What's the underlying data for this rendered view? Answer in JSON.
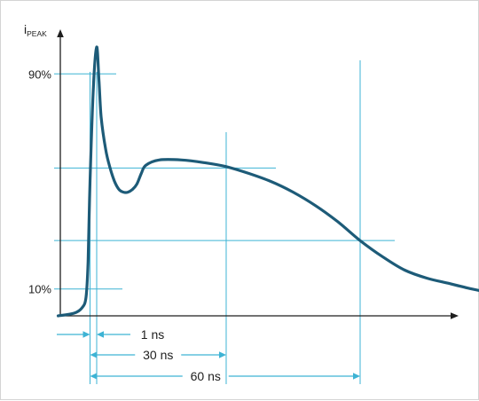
{
  "chart_data": {
    "type": "line",
    "y_axis_label": {
      "main": "i",
      "sub": "PEAK"
    },
    "y_ticks": [
      {
        "label": "90%",
        "value": 0.9
      },
      {
        "label": "10%",
        "value": 0.1
      }
    ],
    "reference_levels": [
      0.9,
      0.1,
      0.55,
      0.28
    ],
    "time_markers": [
      {
        "label": "1 ns",
        "t_ns": 1
      },
      {
        "label": "30 ns",
        "t_ns": 30
      },
      {
        "label": "60 ns",
        "t_ns": 60
      }
    ],
    "series": [
      {
        "points": [
          [
            -8.0,
            0.0
          ],
          [
            -4.0,
            0.01
          ],
          [
            -2.0,
            0.03
          ],
          [
            -1.0,
            0.07
          ],
          [
            -0.5,
            0.2
          ],
          [
            0.0,
            0.5
          ],
          [
            0.5,
            0.85
          ],
          [
            1.0,
            1.0
          ],
          [
            1.5,
            0.88
          ],
          [
            2.0,
            0.74
          ],
          [
            3.0,
            0.62
          ],
          [
            4.0,
            0.55
          ],
          [
            5.0,
            0.5
          ],
          [
            6.0,
            0.47
          ],
          [
            7.0,
            0.46
          ],
          [
            8.0,
            0.46
          ],
          [
            9.0,
            0.47
          ],
          [
            10.0,
            0.49
          ],
          [
            11.0,
            0.53
          ],
          [
            12.0,
            0.56
          ],
          [
            15.0,
            0.58
          ],
          [
            20.0,
            0.58
          ],
          [
            25.0,
            0.57
          ],
          [
            30.0,
            0.555
          ],
          [
            35.0,
            0.53
          ],
          [
            40.0,
            0.5
          ],
          [
            45.0,
            0.46
          ],
          [
            50.0,
            0.41
          ],
          [
            55.0,
            0.35
          ],
          [
            60.0,
            0.28
          ],
          [
            65.0,
            0.22
          ],
          [
            70.0,
            0.17
          ],
          [
            75.0,
            0.14
          ],
          [
            80.0,
            0.12
          ],
          [
            85.0,
            0.1
          ],
          [
            88.0,
            0.09
          ]
        ]
      }
    ],
    "colors": {
      "curve": "#1d5b78",
      "guide": "#3db3d4",
      "axis": "#1e1e1e"
    }
  }
}
